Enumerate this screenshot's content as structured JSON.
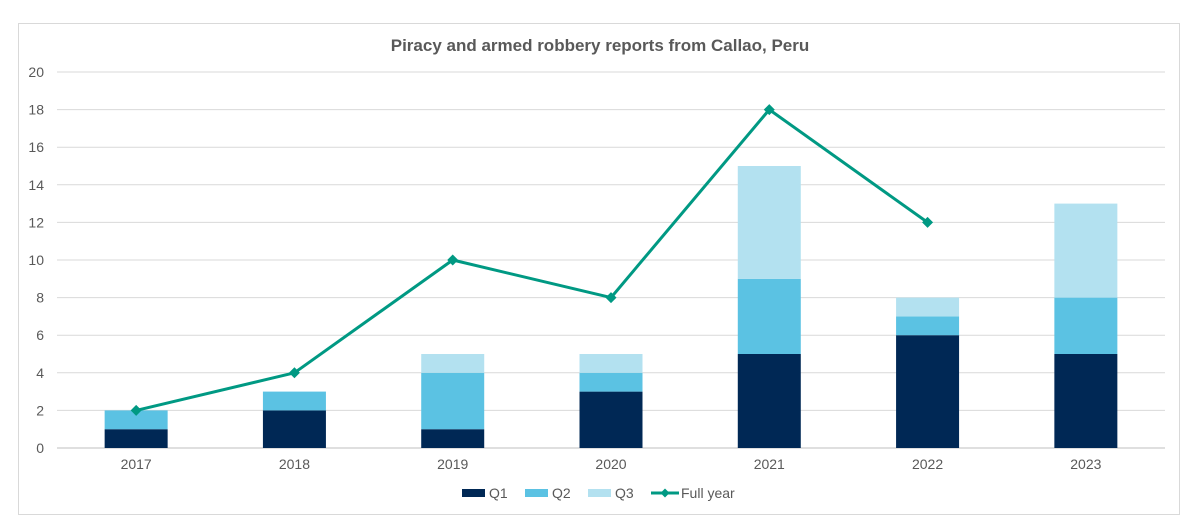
{
  "chart_data": {
    "type": "bar",
    "stacked": true,
    "title": "Piracy and armed robbery reports from Callao, Peru",
    "categories": [
      "2017",
      "2018",
      "2019",
      "2020",
      "2021",
      "2022",
      "2023"
    ],
    "series": [
      {
        "name": "Q1",
        "type": "bar",
        "color": "#002855",
        "values": [
          1,
          2,
          1,
          3,
          5,
          6,
          5
        ]
      },
      {
        "name": "Q2",
        "type": "bar",
        "color": "#5bc2e3",
        "values": [
          1,
          1,
          3,
          1,
          4,
          1,
          3
        ]
      },
      {
        "name": "Q3",
        "type": "bar",
        "color": "#b3e1f0",
        "values": [
          0,
          0,
          1,
          1,
          6,
          1,
          5
        ]
      },
      {
        "name": "Full year",
        "type": "line",
        "color": "#009983",
        "values": [
          2,
          4,
          10,
          8,
          18,
          12,
          null
        ]
      }
    ],
    "ylim": [
      0,
      20
    ],
    "yticks": [
      0,
      2,
      4,
      6,
      8,
      10,
      12,
      14,
      16,
      18,
      20
    ],
    "grid": true,
    "legend_position": "bottom"
  }
}
